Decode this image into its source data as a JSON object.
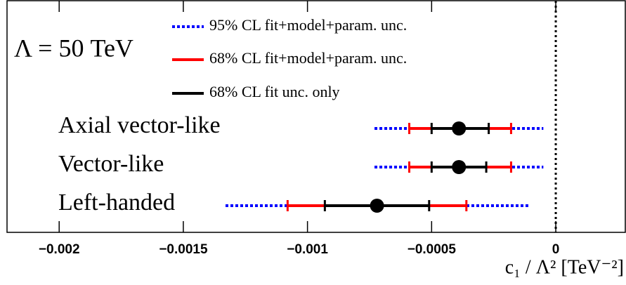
{
  "chart_data": {
    "type": "interval",
    "annotation": "Λ = 50 TeV",
    "x_label": "c₁ / Λ² [TeV⁻²]",
    "categories": [
      "Axial vector-like",
      "Vector-like",
      "Left-handed"
    ],
    "center": [
      -0.00039,
      -0.00039,
      -0.00072
    ],
    "center_color": "#000000",
    "series": [
      {
        "name": "95% CL fit+model+param. unc.",
        "color": "#0000ff",
        "dashed": true,
        "low": [
          -0.00073,
          -0.00073,
          -0.00133
        ],
        "high": [
          -5e-05,
          -5e-05,
          -0.00011
        ]
      },
      {
        "name": "68% CL fit+model+param. unc.",
        "color": "#ff0000",
        "dashed": false,
        "low": [
          -0.00059,
          -0.00059,
          -0.00108
        ],
        "high": [
          -0.00018,
          -0.00018,
          -0.00036
        ]
      },
      {
        "name": "68% CL fit unc. only",
        "color": "#000000",
        "dashed": false,
        "low": [
          -0.0005,
          -0.0005,
          -0.00093
        ],
        "high": [
          -0.00027,
          -0.00028,
          -0.00051
        ]
      }
    ],
    "vline": 0,
    "xlim": [
      -0.00221,
      0.00028
    ],
    "xticks": [
      {
        "value": -0.002,
        "label": "−0.002"
      },
      {
        "value": -0.0015,
        "label": "−0.0015"
      },
      {
        "value": -0.001,
        "label": "−0.001"
      },
      {
        "value": -0.0005,
        "label": "−0.0005"
      },
      0
    ]
  }
}
